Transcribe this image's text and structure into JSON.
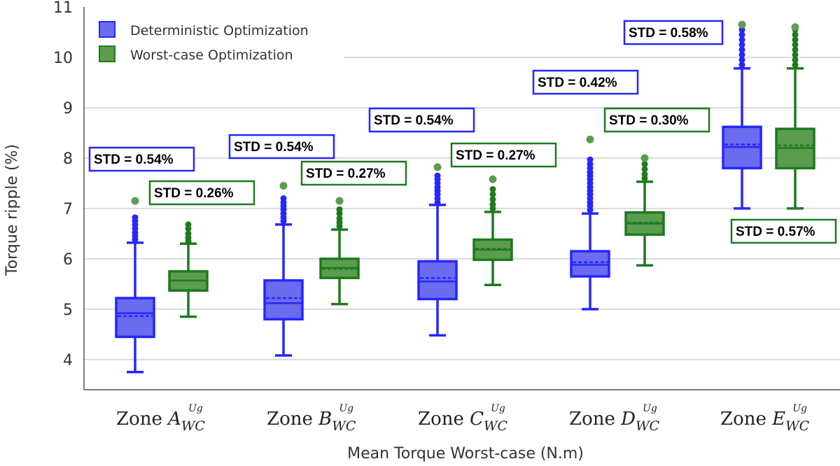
{
  "chart_data": {
    "type": "box",
    "xlabel": "Mean Torque Worst-case (N.m)",
    "ylabel": "Torque ripple (%)",
    "ylim": [
      3.4,
      11
    ],
    "yticks": [
      4,
      5,
      6,
      7,
      8,
      9,
      10,
      11
    ],
    "grid": true,
    "legend_position": "top-left",
    "categories": [
      {
        "zone": "Zone",
        "letter": "A",
        "sub": "WC",
        "sup": "Ug"
      },
      {
        "zone": "Zone",
        "letter": "B",
        "sub": "WC",
        "sup": "Ug"
      },
      {
        "zone": "Zone",
        "letter": "C",
        "sub": "WC",
        "sup": "Ug"
      },
      {
        "zone": "Zone",
        "letter": "D",
        "sub": "WC",
        "sup": "Ug"
      },
      {
        "zone": "Zone",
        "letter": "E",
        "sub": "WC",
        "sup": "Ug"
      }
    ],
    "series": [
      {
        "name": "Deterministic Optimization",
        "color": "#2626ff",
        "fill": "#6b6bf0",
        "boxes": [
          {
            "min": 3.75,
            "q1": 4.45,
            "median": 4.92,
            "mean": 4.86,
            "q3": 5.22,
            "max": 6.32,
            "outliers": [
              6.38,
              6.45,
              6.52,
              6.6,
              6.68,
              6.75,
              6.82
            ],
            "extreme": 7.15,
            "std": "STD = 0.54%"
          },
          {
            "min": 4.08,
            "q1": 4.8,
            "median": 5.12,
            "mean": 5.22,
            "q3": 5.57,
            "max": 6.68,
            "outliers": [
              6.75,
              6.82,
              6.9,
              6.98,
              7.05,
              7.12,
              7.2
            ],
            "extreme": 7.45,
            "std": "STD = 0.54%"
          },
          {
            "min": 4.48,
            "q1": 5.2,
            "median": 5.55,
            "mean": 5.62,
            "q3": 5.95,
            "max": 7.07,
            "outliers": [
              7.12,
              7.2,
              7.28,
              7.35,
              7.42,
              7.5,
              7.58,
              7.65
            ],
            "extreme": 7.82,
            "std": "STD = 0.54%"
          },
          {
            "min": 5.0,
            "q1": 5.65,
            "median": 5.88,
            "mean": 5.93,
            "q3": 6.15,
            "max": 6.9,
            "outliers": [
              6.97,
              7.05,
              7.12,
              7.2,
              7.28,
              7.35,
              7.42,
              7.5,
              7.58,
              7.65,
              7.72,
              7.8,
              7.88,
              7.97
            ],
            "extreme": 8.37,
            "std": "STD = 0.42%"
          },
          {
            "min": 7.0,
            "q1": 7.8,
            "median": 8.22,
            "mean": 8.27,
            "q3": 8.62,
            "max": 9.78,
            "outliers": [
              9.85,
              9.95,
              10.05,
              10.15,
              10.25,
              10.35,
              10.45,
              10.55
            ],
            "extreme": 10.65,
            "std": "STD = 0.58%"
          }
        ]
      },
      {
        "name": "Worst-case Optimization",
        "color": "#1e7a1e",
        "fill": "#5b9d4f",
        "boxes": [
          {
            "min": 4.85,
            "q1": 5.37,
            "median": 5.57,
            "mean": 5.57,
            "q3": 5.75,
            "max": 6.3,
            "outliers": [
              6.35,
              6.42,
              6.5,
              6.6,
              6.68
            ],
            "extreme": null,
            "std": "STD = 0.26%"
          },
          {
            "min": 5.1,
            "q1": 5.62,
            "median": 5.82,
            "mean": 5.8,
            "q3": 6.0,
            "max": 6.58,
            "outliers": [
              6.65,
              6.72,
              6.8,
              6.9,
              6.98
            ],
            "extreme": 7.15,
            "std": "STD = 0.27%"
          },
          {
            "min": 5.48,
            "q1": 5.98,
            "median": 6.18,
            "mean": 6.2,
            "q3": 6.38,
            "max": 6.93,
            "outliers": [
              7.0,
              7.08,
              7.18,
              7.28,
              7.38
            ],
            "extreme": 7.58,
            "std": "STD = 0.27%"
          },
          {
            "min": 5.87,
            "q1": 6.48,
            "median": 6.7,
            "mean": 6.72,
            "q3": 6.92,
            "max": 7.53,
            "outliers": [
              7.6,
              7.68,
              7.78,
              7.88
            ],
            "extreme": 8.0,
            "std": "STD = 0.30%"
          },
          {
            "min": 7.0,
            "q1": 7.8,
            "median": 8.2,
            "mean": 8.25,
            "q3": 8.58,
            "max": 9.78,
            "outliers": [
              9.85,
              9.95,
              10.05,
              10.15,
              10.25,
              10.35,
              10.45,
              10.55
            ],
            "extreme": 10.6,
            "std": "STD = 0.57%"
          }
        ]
      }
    ]
  }
}
